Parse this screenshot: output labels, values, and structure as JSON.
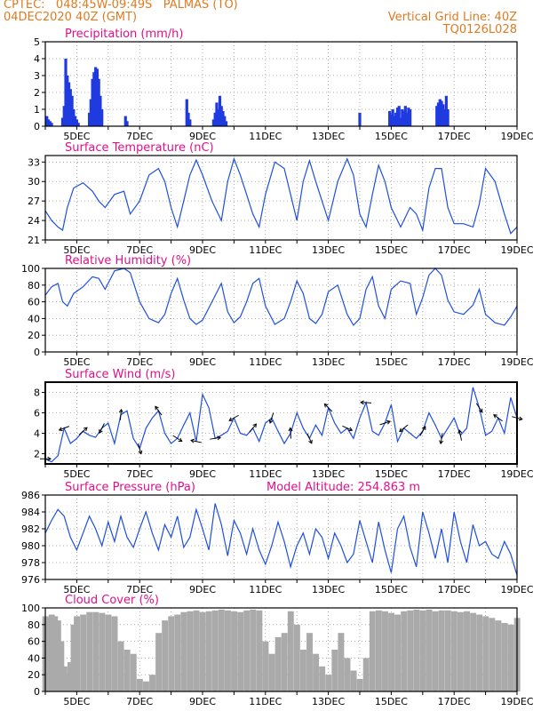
{
  "header": {
    "line1": "CPTEC:   048:45W-09:49S   PALMAS (TO)",
    "line2": "04DEC2020 40Z (GMT)",
    "right1": "Vertical Grid Line: 40Z",
    "right2": "TQ0126L028"
  },
  "colors": {
    "header": "#e07a1f",
    "title": "#e0108a",
    "line": "#1f4fe0",
    "bar": "#1f3be0",
    "cloud": "#aaaaaa",
    "arrow": "#000000"
  },
  "chart_data": [
    {
      "type": "bar",
      "title": "Precipitation (mm/h)",
      "x_tick_labels": [
        "5DEC",
        "7DEC",
        "9DEC",
        "11DEC",
        "13DEC",
        "15DEC",
        "17DEC",
        "19DEC"
      ],
      "ylim": [
        0,
        5
      ],
      "y_ticks": [
        0,
        1,
        2,
        3,
        4,
        5
      ],
      "grid": true,
      "x_range_days": [
        4.0,
        19.0
      ],
      "x": [
        4.05,
        4.1,
        4.15,
        4.2,
        4.55,
        4.6,
        4.65,
        4.7,
        4.75,
        4.8,
        4.85,
        4.9,
        4.95,
        5.0,
        5.05,
        5.4,
        5.45,
        5.5,
        5.55,
        5.6,
        5.65,
        5.7,
        5.75,
        5.8,
        6.55,
        6.6,
        8.5,
        8.55,
        8.6,
        9.35,
        9.4,
        9.45,
        9.5,
        9.55,
        9.6,
        9.65,
        9.7,
        9.75,
        14.0,
        14.95,
        15.0,
        15.05,
        15.1,
        15.15,
        15.2,
        15.25,
        15.3,
        15.35,
        15.4,
        15.45,
        15.5,
        15.55,
        15.6,
        16.45,
        16.5,
        16.55,
        16.6,
        16.65,
        16.7,
        16.75,
        16.8
      ],
      "values": [
        0.6,
        0.4,
        0.3,
        0.2,
        0.5,
        1.2,
        4.0,
        3.0,
        2.6,
        2.2,
        1.8,
        1.0,
        0.6,
        0.4,
        0.2,
        0.8,
        1.6,
        2.8,
        3.2,
        3.5,
        3.4,
        2.8,
        1.8,
        1.0,
        0.6,
        0.3,
        1.6,
        0.8,
        0.4,
        0.4,
        0.8,
        1.4,
        1.0,
        1.8,
        1.2,
        0.9,
        0.6,
        0.3,
        0.8,
        0.9,
        0.7,
        1.0,
        0.6,
        0.8,
        1.1,
        1.2,
        0.5,
        1.0,
        0.9,
        1.2,
        0.8,
        1.1,
        1.0,
        1.2,
        1.4,
        1.6,
        1.5,
        1.3,
        1.0,
        1.8,
        1.0
      ]
    },
    {
      "type": "line",
      "title": "Surface Temperature (nC)",
      "x_tick_labels": [
        "5DEC",
        "7DEC",
        "9DEC",
        "11DEC",
        "13DEC",
        "15DEC",
        "17DEC",
        "19DEC"
      ],
      "ylim": [
        21,
        34
      ],
      "y_ticks": [
        21,
        24,
        27,
        30,
        33
      ],
      "grid": true,
      "x_range_days": [
        4.0,
        19.0
      ],
      "x": [
        4.0,
        4.2,
        4.4,
        4.55,
        4.7,
        4.9,
        5.2,
        5.5,
        5.7,
        5.9,
        6.2,
        6.5,
        6.7,
        7.0,
        7.3,
        7.6,
        7.8,
        8.0,
        8.2,
        8.4,
        8.6,
        8.8,
        9.0,
        9.3,
        9.6,
        9.8,
        10.0,
        10.2,
        10.4,
        10.6,
        10.8,
        11.0,
        11.3,
        11.6,
        11.8,
        12.0,
        12.2,
        12.4,
        12.6,
        12.8,
        13.0,
        13.3,
        13.6,
        13.8,
        14.0,
        14.2,
        14.4,
        14.6,
        14.8,
        15.0,
        15.3,
        15.6,
        15.8,
        16.0,
        16.2,
        16.4,
        16.6,
        16.8,
        17.0,
        17.3,
        17.6,
        17.8,
        18.0,
        18.3,
        18.6,
        18.8,
        19.0
      ],
      "values": [
        25.5,
        24,
        23,
        22.5,
        26,
        29,
        29.8,
        28.5,
        27,
        26,
        28,
        28.5,
        25,
        27,
        31,
        32,
        30,
        26,
        23,
        27,
        31,
        33.3,
        31,
        27,
        24,
        30,
        33.5,
        31,
        28,
        25,
        23,
        28,
        33,
        32,
        28,
        24,
        30,
        33.2,
        30,
        27,
        24,
        30,
        33.5,
        31,
        25,
        23,
        28,
        32.5,
        30,
        26,
        23,
        26,
        25,
        22.5,
        29,
        32,
        32,
        26,
        23.5,
        23.5,
        23,
        26.5,
        32,
        30,
        25,
        22,
        23
      ]
    },
    {
      "type": "line",
      "title": "Relative Humidity (%)",
      "x_tick_labels": [
        "5DEC",
        "7DEC",
        "9DEC",
        "11DEC",
        "13DEC",
        "15DEC",
        "17DEC",
        "19DEC"
      ],
      "ylim": [
        0,
        100
      ],
      "y_ticks": [
        0,
        20,
        40,
        60,
        80,
        100
      ],
      "grid": true,
      "x_range_days": [
        4.0,
        19.0
      ],
      "x": [
        4.0,
        4.2,
        4.4,
        4.55,
        4.7,
        4.9,
        5.2,
        5.5,
        5.7,
        5.9,
        6.2,
        6.5,
        6.7,
        7.0,
        7.3,
        7.6,
        7.8,
        8.0,
        8.2,
        8.4,
        8.6,
        8.8,
        9.0,
        9.3,
        9.6,
        9.8,
        10.0,
        10.2,
        10.4,
        10.6,
        10.8,
        11.0,
        11.3,
        11.6,
        11.8,
        12.0,
        12.2,
        12.4,
        12.6,
        12.8,
        13.0,
        13.3,
        13.6,
        13.8,
        14.0,
        14.2,
        14.4,
        14.6,
        14.8,
        15.0,
        15.3,
        15.6,
        15.8,
        16.0,
        16.2,
        16.4,
        16.6,
        16.8,
        17.0,
        17.3,
        17.6,
        17.8,
        18.0,
        18.3,
        18.6,
        18.8,
        19.0
      ],
      "values": [
        68,
        78,
        82,
        60,
        55,
        70,
        78,
        90,
        88,
        75,
        97,
        100,
        95,
        60,
        40,
        35,
        45,
        70,
        88,
        62,
        40,
        33,
        38,
        60,
        82,
        48,
        35,
        42,
        60,
        82,
        88,
        55,
        33,
        40,
        60,
        85,
        70,
        40,
        34,
        45,
        72,
        80,
        45,
        32,
        40,
        75,
        90,
        55,
        40,
        75,
        85,
        82,
        45,
        65,
        92,
        100,
        92,
        62,
        48,
        45,
        56,
        75,
        45,
        35,
        32,
        42,
        55
      ]
    },
    {
      "type": "line",
      "title": "Surface Wind (m/s)",
      "x_tick_labels": [
        "5DEC",
        "7DEC",
        "9DEC",
        "11DEC",
        "13DEC",
        "15DEC",
        "17DEC",
        "19DEC"
      ],
      "ylim": [
        1,
        9
      ],
      "y_ticks": [
        2,
        4,
        6,
        8
      ],
      "grid": true,
      "x_range_days": [
        4.0,
        19.0
      ],
      "x": [
        4.0,
        4.2,
        4.4,
        4.6,
        4.8,
        5.0,
        5.2,
        5.4,
        5.6,
        5.8,
        6.0,
        6.2,
        6.4,
        6.6,
        6.8,
        7.0,
        7.2,
        7.4,
        7.6,
        7.8,
        8.0,
        8.2,
        8.4,
        8.6,
        8.8,
        9.0,
        9.2,
        9.4,
        9.6,
        9.8,
        10.0,
        10.2,
        10.4,
        10.6,
        10.8,
        11.0,
        11.2,
        11.4,
        11.6,
        11.8,
        12.0,
        12.2,
        12.4,
        12.6,
        12.8,
        13.0,
        13.2,
        13.4,
        13.6,
        13.8,
        14.0,
        14.2,
        14.4,
        14.6,
        14.8,
        15.0,
        15.2,
        15.4,
        15.6,
        15.8,
        16.0,
        16.2,
        16.4,
        16.6,
        16.8,
        17.0,
        17.2,
        17.4,
        17.6,
        17.8,
        18.0,
        18.2,
        18.4,
        18.6,
        18.8,
        19.0
      ],
      "values": [
        1.5,
        1.2,
        1.8,
        4.5,
        3.0,
        3.5,
        4.2,
        3.8,
        3.6,
        4.5,
        5.0,
        3.0,
        5.8,
        6.2,
        3.5,
        2.5,
        4.5,
        5.5,
        6.2,
        4.0,
        3.0,
        3.5,
        4.8,
        6.0,
        3.2,
        7.8,
        6.5,
        3.5,
        3.8,
        4.2,
        5.5,
        4.0,
        3.8,
        4.5,
        3.2,
        5.0,
        5.5,
        4.2,
        3.0,
        4.0,
        6.0,
        4.5,
        3.5,
        4.8,
        3.8,
        6.5,
        5.0,
        4.0,
        4.5,
        3.5,
        5.5,
        7.0,
        4.2,
        3.8,
        5.0,
        6.8,
        3.2,
        4.5,
        4.0,
        3.5,
        4.2,
        6.0,
        4.8,
        3.5,
        4.5,
        5.5,
        3.8,
        4.5,
        8.5,
        6.5,
        3.8,
        4.2,
        5.5,
        4.0,
        7.5,
        5.5
      ]
    },
    {
      "type": "line",
      "title": "Surface Pressure (hPa)",
      "annotation": "Model Altitude: 254.863 m",
      "x_tick_labels": [
        "5DEC",
        "7DEC",
        "9DEC",
        "11DEC",
        "13DEC",
        "15DEC",
        "17DEC",
        "19DEC"
      ],
      "ylim": [
        976,
        986
      ],
      "y_ticks": [
        976,
        978,
        980,
        982,
        984,
        986
      ],
      "grid": true,
      "x_range_days": [
        4.0,
        19.0
      ],
      "x": [
        4.0,
        4.2,
        4.4,
        4.6,
        4.8,
        5.0,
        5.2,
        5.4,
        5.6,
        5.8,
        6.0,
        6.2,
        6.4,
        6.6,
        6.8,
        7.0,
        7.2,
        7.4,
        7.6,
        7.8,
        8.0,
        8.2,
        8.4,
        8.6,
        8.8,
        9.0,
        9.2,
        9.4,
        9.6,
        9.8,
        10.0,
        10.2,
        10.4,
        10.6,
        10.8,
        11.0,
        11.2,
        11.4,
        11.6,
        11.8,
        12.0,
        12.2,
        12.4,
        12.6,
        12.8,
        13.0,
        13.2,
        13.4,
        13.6,
        13.8,
        14.0,
        14.2,
        14.4,
        14.6,
        14.8,
        15.0,
        15.2,
        15.4,
        15.6,
        15.8,
        16.0,
        16.2,
        16.4,
        16.6,
        16.8,
        17.0,
        17.2,
        17.4,
        17.6,
        17.8,
        18.0,
        18.2,
        18.4,
        18.6,
        18.8,
        19.0
      ],
      "values": [
        981.5,
        983.0,
        984.3,
        983.5,
        981.0,
        979.5,
        981.5,
        983.5,
        982.0,
        980.0,
        982.8,
        980.5,
        983.5,
        981.0,
        979.8,
        982.0,
        984.0,
        981.5,
        979.5,
        982.5,
        981.0,
        983.5,
        979.8,
        981.0,
        984.3,
        982.0,
        979.5,
        985.0,
        982.5,
        978.8,
        983.0,
        981.5,
        979.0,
        982.0,
        979.5,
        977.8,
        980.0,
        982.8,
        980.5,
        977.5,
        980.0,
        981.5,
        979.0,
        982.0,
        981.0,
        978.5,
        981.5,
        980.0,
        978.0,
        979.0,
        983.0,
        980.5,
        978.0,
        982.8,
        979.5,
        976.8,
        982.0,
        983.5,
        979.8,
        977.5,
        984.0,
        981.5,
        978.5,
        982.0,
        978.0,
        984.0,
        980.5,
        978.0,
        982.5,
        980.0,
        980.5,
        979.0,
        978.5,
        980.5,
        979.0,
        976.5
      ]
    },
    {
      "type": "area",
      "title": "Cloud Cover (%)",
      "x_tick_labels": [
        "5DEC",
        "7DEC",
        "9DEC",
        "11DEC",
        "13DEC",
        "15DEC",
        "17DEC",
        "19DEC"
      ],
      "ylim": [
        0,
        100
      ],
      "y_ticks": [
        0,
        20,
        40,
        60,
        80,
        100
      ],
      "grid": true,
      "x_range_days": [
        4.0,
        19.0
      ],
      "x": [
        4.0,
        4.1,
        4.2,
        4.3,
        4.4,
        4.5,
        4.6,
        4.7,
        4.8,
        4.9,
        5.0,
        5.2,
        5.4,
        5.6,
        5.8,
        6.0,
        6.2,
        6.4,
        6.6,
        6.8,
        7.0,
        7.2,
        7.4,
        7.6,
        7.8,
        8.0,
        8.2,
        8.4,
        8.6,
        8.8,
        9.0,
        9.2,
        9.4,
        9.6,
        9.8,
        10.0,
        10.2,
        10.4,
        10.6,
        10.8,
        11.0,
        11.2,
        11.4,
        11.6,
        11.8,
        12.0,
        12.2,
        12.4,
        12.6,
        12.8,
        13.0,
        13.2,
        13.4,
        13.6,
        13.8,
        14.0,
        14.2,
        14.4,
        14.6,
        14.8,
        15.0,
        15.2,
        15.4,
        15.6,
        15.8,
        16.0,
        16.2,
        16.4,
        16.6,
        16.8,
        17.0,
        17.2,
        17.4,
        17.6,
        17.8,
        18.0,
        18.2,
        18.4,
        18.6,
        18.8,
        19.0
      ],
      "values": [
        90,
        88,
        92,
        90,
        85,
        60,
        30,
        20,
        35,
        80,
        90,
        92,
        95,
        95,
        94,
        92,
        90,
        60,
        50,
        45,
        15,
        12,
        20,
        70,
        85,
        90,
        92,
        95,
        96,
        97,
        95,
        96,
        97,
        98,
        97,
        96,
        95,
        97,
        98,
        97,
        60,
        45,
        65,
        70,
        96,
        80,
        50,
        70,
        45,
        30,
        20,
        50,
        70,
        40,
        25,
        15,
        40,
        96,
        97,
        96,
        94,
        92,
        96,
        97,
        98,
        97,
        98,
        96,
        97,
        97,
        96,
        95,
        96,
        94,
        92,
        90,
        88,
        85,
        82,
        80,
        88
      ]
    }
  ]
}
